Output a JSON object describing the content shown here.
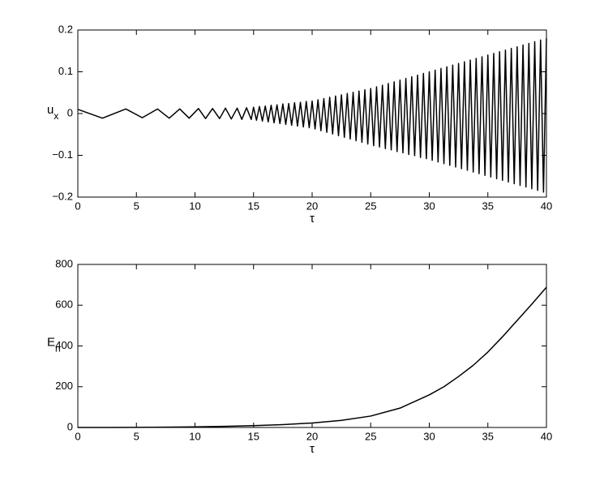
{
  "chart_data": [
    {
      "type": "line",
      "xlabel": "τ",
      "ylabel": {
        "main": "u",
        "sub": "x"
      },
      "x": [
        0,
        2.1,
        4.1,
        5.5,
        6.8,
        7.8,
        8.7,
        9.5,
        10.3,
        10.9,
        11.5,
        12.1,
        12.6,
        13.1,
        13.6,
        14.0,
        14.4,
        14.8,
        15,
        15.25,
        15.5,
        15.75,
        16,
        16.25,
        16.5,
        16.75,
        17,
        17.25,
        17.5,
        17.75,
        18,
        18.25,
        18.5,
        18.75,
        19,
        19.25,
        19.5,
        19.75,
        20,
        20.25,
        20.5,
        20.75,
        21,
        21.25,
        21.5,
        21.75,
        22,
        22.25,
        22.5,
        22.75,
        23,
        23.25,
        23.5,
        23.75,
        24,
        24.25,
        24.5,
        24.75,
        25,
        25.25,
        25.5,
        25.75,
        26,
        26.25,
        26.5,
        26.75,
        27,
        27.25,
        27.5,
        27.75,
        28,
        28.25,
        28.5,
        28.75,
        29,
        29.25,
        29.5,
        29.75,
        30,
        30.25,
        30.5,
        30.75,
        31,
        31.25,
        31.5,
        31.75,
        32,
        32.25,
        32.5,
        32.75,
        33,
        33.25,
        33.5,
        33.75,
        34,
        34.25,
        34.5,
        34.75,
        35,
        35.25,
        35.5,
        35.75,
        36,
        36.25,
        36.5,
        36.75,
        37,
        37.25,
        37.5,
        37.75,
        38,
        38.25,
        38.5,
        38.75,
        39,
        39.25,
        39.5,
        39.75,
        40
      ],
      "series": [
        {
          "color": "#000000",
          "values": [
            0.01,
            -0.011,
            0.011,
            -0.01,
            0.011,
            -0.011,
            0.011,
            -0.011,
            0.012,
            -0.012,
            0.012,
            -0.012,
            0.013,
            -0.013,
            0.013,
            -0.014,
            0.014,
            -0.014,
            0.015,
            -0.016,
            0.017,
            -0.018,
            0.018,
            -0.02,
            0.02,
            -0.022,
            0.021,
            -0.024,
            0.023,
            -0.026,
            0.024,
            -0.028,
            0.026,
            -0.03,
            0.027,
            -0.032,
            0.029,
            -0.034,
            0.03,
            -0.037,
            0.033,
            -0.041,
            0.036,
            -0.045,
            0.039,
            -0.049,
            0.042,
            -0.053,
            0.045,
            -0.057,
            0.048,
            -0.061,
            0.051,
            -0.065,
            0.054,
            -0.069,
            0.057,
            -0.073,
            0.06,
            -0.077,
            0.064,
            -0.08,
            0.068,
            -0.084,
            0.072,
            -0.087,
            0.076,
            -0.091,
            0.08,
            -0.094,
            0.084,
            -0.098,
            0.088,
            -0.101,
            0.092,
            -0.105,
            0.096,
            -0.108,
            0.1,
            -0.112,
            0.104,
            -0.116,
            0.108,
            -0.12,
            0.112,
            -0.124,
            0.116,
            -0.128,
            0.12,
            -0.132,
            0.124,
            -0.136,
            0.128,
            -0.14,
            0.132,
            -0.144,
            0.136,
            -0.148,
            0.14,
            -0.152,
            0.144,
            -0.156,
            0.148,
            -0.16,
            0.152,
            -0.164,
            0.156,
            -0.168,
            0.16,
            -0.172,
            0.164,
            -0.176,
            0.168,
            -0.18,
            0.172,
            -0.184,
            0.176,
            -0.188,
            0.18
          ]
        }
      ],
      "xlim": [
        0,
        40
      ],
      "xticks": [
        0,
        5,
        10,
        15,
        20,
        25,
        30,
        35,
        40
      ],
      "ylim": [
        -0.2,
        0.2
      ],
      "yticks": [
        {
          "value": -0.2,
          "label": "−0.2"
        },
        {
          "value": -0.1,
          "label": "−0.1"
        },
        0,
        0.1,
        0.2
      ]
    },
    {
      "type": "line",
      "xlabel": "τ",
      "ylabel": {
        "main": "E",
        "sub": "n"
      },
      "x": [
        0,
        2.5,
        5,
        7.5,
        10,
        12.5,
        15,
        17.5,
        20,
        22.5,
        25,
        27.5,
        30,
        31.25,
        32.5,
        33.75,
        35,
        36.25,
        37.5,
        38.75,
        40
      ],
      "series": [
        {
          "color": "#000000",
          "values": [
            0,
            0.2,
            0.6,
            1.5,
            3,
            5.5,
            9,
            14,
            22,
            35,
            56,
            95,
            160,
            200,
            250,
            305,
            370,
            445,
            525,
            605,
            688
          ]
        }
      ],
      "xlim": [
        0,
        40
      ],
      "xticks": [
        0,
        5,
        10,
        15,
        20,
        25,
        30,
        35,
        40
      ],
      "ylim": [
        0,
        800
      ],
      "yticks": [
        0,
        200,
        400,
        600,
        800
      ]
    }
  ]
}
